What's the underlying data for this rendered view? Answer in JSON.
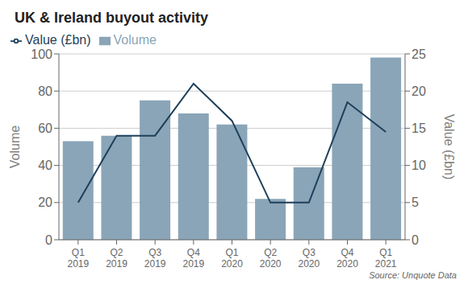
{
  "chart_data": {
    "type": "bar",
    "title": "UK & Ireland buyout activity",
    "annotations": [
      "Source: Unquote Data"
    ],
    "categories": [
      "Q1\n2019",
      "Q2\n2019",
      "Q3\n2019",
      "Q4\n2019",
      "Q1\n2020",
      "Q2\n2020",
      "Q3\n2020",
      "Q4\n2020",
      "Q1\n2021"
    ],
    "series": [
      {
        "name": "Volume",
        "type": "bar",
        "color": "#8aa5b8",
        "values": [
          53,
          56,
          75,
          68,
          62,
          22,
          39,
          84,
          98
        ]
      },
      {
        "name": "Value (£bn)",
        "type": "line",
        "color": "#1e3f5a",
        "axis": "y2",
        "values": [
          5,
          14,
          14,
          21,
          16,
          5,
          5,
          18.5,
          14.5
        ]
      }
    ],
    "ylabel": "Volume",
    "y2label": "Value (£bn)",
    "ylim": [
      0,
      100
    ],
    "yticks": [
      0,
      20,
      40,
      60,
      80,
      100
    ],
    "y2lim": [
      0,
      25
    ],
    "y2ticks": [
      0,
      5,
      10,
      15,
      20,
      25
    ],
    "grid": true,
    "legend": "upper left"
  }
}
